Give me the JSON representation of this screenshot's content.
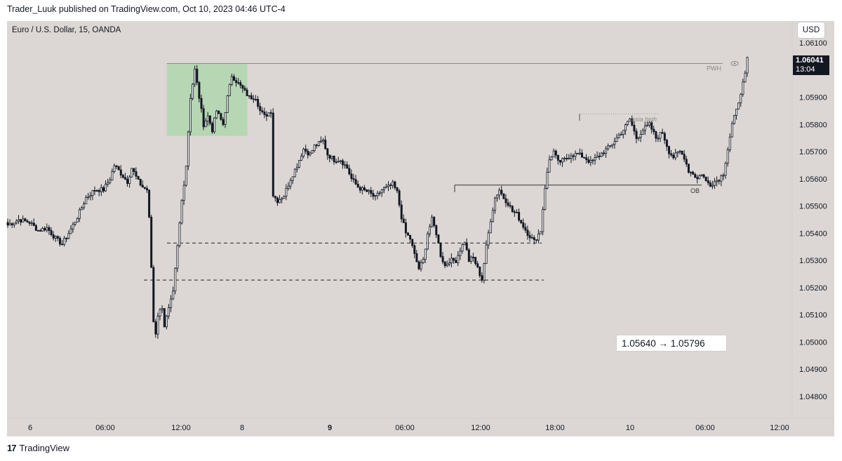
{
  "header": {
    "publisher_line": "Trader_Luuk published on TradingView.com, Oct 10, 2023 04:46 UTC-4"
  },
  "chart_data": {
    "type": "candlestick",
    "title": "Euro / U.S. Dollar, 15, OANDA",
    "currency_button": "USD",
    "last_price": "1.06041",
    "countdown": "13:04",
    "y_ticks": [
      "1.06100",
      "1.05900",
      "1.05800",
      "1.05700",
      "1.05600",
      "1.05500",
      "1.05400",
      "1.05300",
      "1.05200",
      "1.05100",
      "1.05000",
      "1.04900",
      "1.04800"
    ],
    "x_ticks": [
      {
        "label": "6",
        "bold": false
      },
      {
        "label": "06:00",
        "bold": false
      },
      {
        "label": "12:00",
        "bold": false
      },
      {
        "label": "8",
        "bold": false
      },
      {
        "label": "9",
        "bold": true
      },
      {
        "label": "06:00",
        "bold": false
      },
      {
        "label": "12:00",
        "bold": false
      },
      {
        "label": "18:00",
        "bold": false
      },
      {
        "label": "10",
        "bold": false
      },
      {
        "label": "06:00",
        "bold": false
      },
      {
        "label": "12:00",
        "bold": false
      }
    ],
    "y_range": [
      1.0472,
      1.0618
    ],
    "annotations": {
      "pwh_label": "PWH",
      "pwh_level": 1.06024,
      "asia_high_label": "asia high",
      "asia_high_level": 1.05839,
      "ob_label": "OB",
      "ob_level": 1.05577,
      "dashed_level_1": 1.05364,
      "dashed_level_2": 1.05228,
      "measure_text": "1.05640 → 1.05796"
    },
    "path_points": [
      [
        0,
        1.0543
      ],
      [
        5,
        1.0545
      ],
      [
        10,
        1.0544
      ],
      [
        14,
        1.0541
      ],
      [
        18,
        1.0542
      ],
      [
        22,
        1.0538
      ],
      [
        25,
        1.0536
      ],
      [
        28,
        1.054
      ],
      [
        32,
        1.0546
      ],
      [
        36,
        1.0553
      ],
      [
        40,
        1.0556
      ],
      [
        44,
        1.0556
      ],
      [
        47,
        1.056
      ],
      [
        49,
        1.0565
      ],
      [
        52,
        1.0562
      ],
      [
        55,
        1.0559
      ],
      [
        57,
        1.0564
      ],
      [
        60,
        1.0559
      ],
      [
        62,
        1.0557
      ],
      [
        64,
        1.0556
      ],
      [
        65.5,
        1.054
      ],
      [
        66.5,
        1.0515
      ],
      [
        67.5,
        1.05
      ],
      [
        69,
        1.051
      ],
      [
        71,
        1.0513
      ],
      [
        72,
        1.0506
      ],
      [
        74,
        1.0512
      ],
      [
        76,
        1.0518
      ],
      [
        78,
        1.0535
      ],
      [
        80,
        1.0552
      ],
      [
        82,
        1.0565
      ],
      [
        84,
        1.059
      ],
      [
        86,
        1.06
      ],
      [
        88,
        1.059
      ],
      [
        90,
        1.058
      ],
      [
        92,
        1.0583
      ],
      [
        94,
        1.0578
      ],
      [
        96,
        1.0585
      ],
      [
        99,
        1.058
      ],
      [
        101,
        1.059
      ],
      [
        103,
        1.0598
      ],
      [
        106,
        1.0595
      ],
      [
        108,
        1.0593
      ],
      [
        111,
        1.059
      ],
      [
        114,
        1.059
      ],
      [
        116,
        1.0585
      ],
      [
        118,
        1.0583
      ],
      [
        121,
        1.0585
      ],
      [
        122,
        1.0554
      ],
      [
        124,
        1.0552
      ],
      [
        127,
        1.0554
      ],
      [
        130,
        1.056
      ],
      [
        133,
        1.0565
      ],
      [
        136,
        1.0571
      ],
      [
        139,
        1.0569
      ],
      [
        141,
        1.0572
      ],
      [
        143,
        1.0573
      ],
      [
        145,
        1.0574
      ],
      [
        147,
        1.0569
      ],
      [
        150,
        1.0567
      ],
      [
        153,
        1.0567
      ],
      [
        156,
        1.0564
      ],
      [
        158,
        1.056
      ],
      [
        161,
        1.0557
      ],
      [
        163,
        1.0556
      ],
      [
        166,
        1.0555
      ],
      [
        169,
        1.0553
      ],
      [
        172,
        1.0556
      ],
      [
        175,
        1.0557
      ],
      [
        177,
        1.0558
      ],
      [
        179,
        1.0555
      ],
      [
        181,
        1.0546
      ],
      [
        183,
        1.054
      ],
      [
        185,
        1.0538
      ],
      [
        187,
        1.0532
      ],
      [
        189,
        1.0527
      ],
      [
        191,
        1.053
      ],
      [
        193,
        1.054
      ],
      [
        195,
        1.0545
      ],
      [
        197,
        1.054
      ],
      [
        199,
        1.0532
      ],
      [
        201,
        1.0528
      ],
      [
        203,
        1.053
      ],
      [
        206,
        1.053
      ],
      [
        208,
        1.0534
      ],
      [
        210,
        1.0537
      ],
      [
        212,
        1.053
      ],
      [
        214,
        1.0531
      ],
      [
        216,
        1.0527
      ],
      [
        218,
        1.0523
      ],
      [
        220,
        1.0535
      ],
      [
        222,
        1.0545
      ],
      [
        224,
        1.0553
      ],
      [
        226,
        1.0556
      ],
      [
        228,
        1.0553
      ],
      [
        230,
        1.0551
      ],
      [
        232,
        1.0548
      ],
      [
        234,
        1.0547
      ],
      [
        236,
        1.0544
      ],
      [
        239,
        1.054
      ],
      [
        242,
        1.0537
      ],
      [
        245,
        1.0541
      ],
      [
        247,
        1.0557
      ],
      [
        249,
        1.0567
      ],
      [
        251,
        1.057
      ],
      [
        253,
        1.0566
      ],
      [
        256,
        1.0567
      ],
      [
        259,
        1.0569
      ],
      [
        262,
        1.0569
      ],
      [
        265,
        1.0568
      ],
      [
        268,
        1.0566
      ],
      [
        271,
        1.0568
      ],
      [
        274,
        1.057
      ],
      [
        277,
        1.0572
      ],
      [
        280,
        1.0575
      ],
      [
        283,
        1.0578
      ],
      [
        286,
        1.0582
      ],
      [
        289,
        1.0575
      ],
      [
        292,
        1.0578
      ],
      [
        295,
        1.058
      ],
      [
        298,
        1.0575
      ],
      [
        301,
        1.0577
      ],
      [
        304,
        1.057
      ],
      [
        306,
        1.0568
      ],
      [
        309,
        1.057
      ],
      [
        311,
        1.0568
      ],
      [
        313,
        1.0563
      ],
      [
        315,
        1.0562
      ],
      [
        317,
        1.056
      ],
      [
        319,
        1.0562
      ],
      [
        321,
        1.0559
      ],
      [
        323,
        1.0558
      ],
      [
        325,
        1.0559
      ],
      [
        327,
        1.056
      ],
      [
        329,
        1.0562
      ],
      [
        331,
        1.0571
      ],
      [
        333,
        1.058
      ],
      [
        335,
        1.0585
      ],
      [
        337,
        1.0592
      ],
      [
        339,
        1.0598
      ],
      [
        340,
        1.0604
      ]
    ]
  }
}
